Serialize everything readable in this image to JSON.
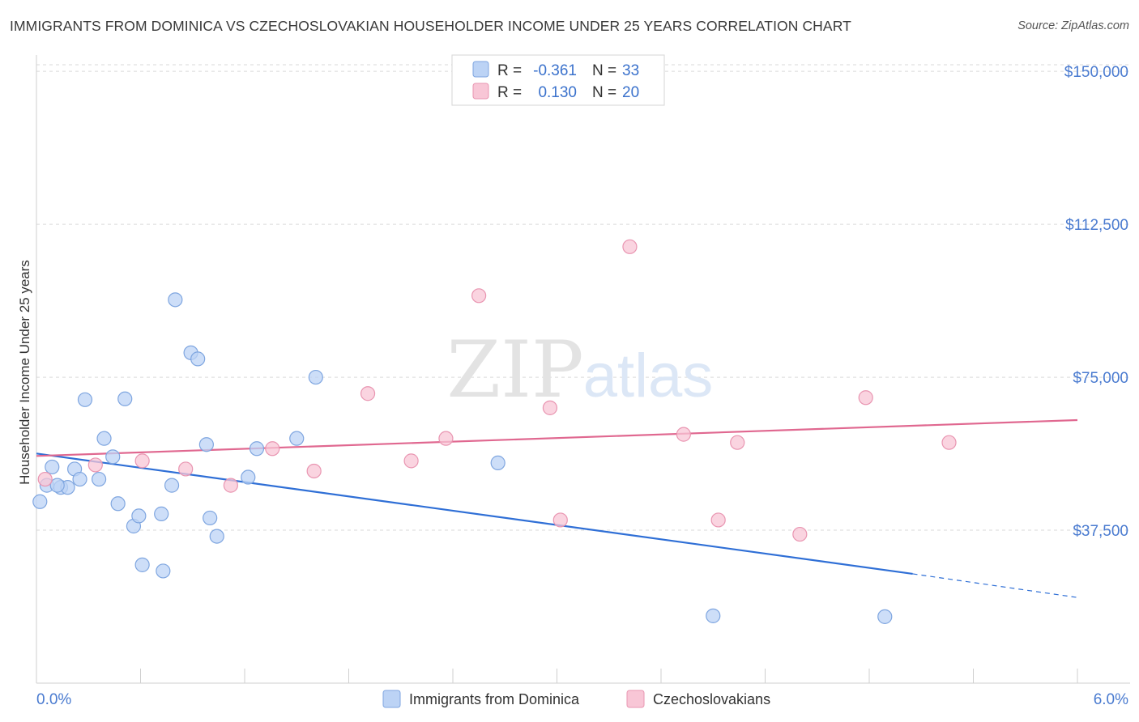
{
  "title": "IMMIGRANTS FROM DOMINICA VS CZECHOSLOVAKIAN HOUSEHOLDER INCOME UNDER 25 YEARS CORRELATION CHART",
  "source": "Source: ZipAtlas.com",
  "watermark": {
    "zip": "ZIP",
    "atlas": "atlas"
  },
  "colors": {
    "blue_fill": "#bcd3f5",
    "blue_stroke": "#7fa6e0",
    "blue_line": "#2f6fd6",
    "pink_fill": "#f8c6d6",
    "pink_stroke": "#e995b1",
    "pink_line": "#e06890",
    "grid": "#d9d9d9",
    "axis_text": "#4a7bd0"
  },
  "legend_top": {
    "rows": [
      {
        "r_label": "R =",
        "r_value": "-0.361",
        "n_label": "N =",
        "n_value": "33",
        "series": "blue"
      },
      {
        "r_label": "R =",
        "r_value": "0.130",
        "n_label": "N =",
        "n_value": "20",
        "series": "pink"
      }
    ]
  },
  "chart_data": {
    "type": "scatter",
    "title": "IMMIGRANTS FROM DOMINICA VS CZECHOSLOVAKIAN HOUSEHOLDER INCOME UNDER 25 YEARS CORRELATION CHART",
    "xlabel": "",
    "ylabel": "Householder Income Under 25 years",
    "xlim": [
      0,
      6.0
    ],
    "ylim": [
      0,
      154000
    ],
    "x_tick_labels": [
      {
        "value": 0,
        "label": "0.0%"
      },
      {
        "value": 6.0,
        "label": "6.0%"
      }
    ],
    "y_ticks": [
      {
        "value": 37500,
        "label": "$37,500"
      },
      {
        "value": 75000,
        "label": "$75,000"
      },
      {
        "value": 112500,
        "label": "$112,500"
      },
      {
        "value": 150000,
        "label": "$150,000"
      }
    ],
    "grid": true,
    "legend_placement": "bottom-center",
    "series": [
      {
        "name": "Immigrants from Dominica",
        "color": "#bcd3f5",
        "points": [
          [
            0.02,
            44500
          ],
          [
            0.06,
            48500
          ],
          [
            0.09,
            53000
          ],
          [
            0.14,
            48000
          ],
          [
            0.18,
            48000
          ],
          [
            0.22,
            52500
          ],
          [
            0.25,
            50000
          ],
          [
            0.28,
            69500
          ],
          [
            0.36,
            50000
          ],
          [
            0.39,
            60000
          ],
          [
            0.44,
            55500
          ],
          [
            0.47,
            44000
          ],
          [
            0.51,
            69700
          ],
          [
            0.56,
            38500
          ],
          [
            0.59,
            41000
          ],
          [
            0.61,
            29000
          ],
          [
            0.72,
            41500
          ],
          [
            0.73,
            27500
          ],
          [
            0.78,
            48500
          ],
          [
            0.8,
            94000
          ],
          [
            0.89,
            81000
          ],
          [
            0.93,
            79500
          ],
          [
            0.98,
            58500
          ],
          [
            1.0,
            40500
          ],
          [
            1.04,
            36000
          ],
          [
            1.22,
            50500
          ],
          [
            1.27,
            57500
          ],
          [
            1.5,
            60000
          ],
          [
            1.61,
            75000
          ],
          [
            2.66,
            54000
          ],
          [
            3.9,
            16500
          ],
          [
            4.89,
            16300
          ],
          [
            0.12,
            48500
          ]
        ],
        "trend": {
          "x0": 0.0,
          "y0": 56300,
          "x1": 5.05,
          "y1": 26800,
          "dash_to_x": 6.0,
          "dash_to_y": 21000
        }
      },
      {
        "name": "Czechoslovakians",
        "color": "#f8c6d6",
        "points": [
          [
            0.05,
            50000
          ],
          [
            0.34,
            53500
          ],
          [
            0.61,
            54500
          ],
          [
            0.86,
            52500
          ],
          [
            1.12,
            48500
          ],
          [
            1.36,
            57500
          ],
          [
            1.6,
            52000
          ],
          [
            1.91,
            71000
          ],
          [
            2.16,
            54500
          ],
          [
            2.36,
            60000
          ],
          [
            2.55,
            95000
          ],
          [
            2.96,
            67500
          ],
          [
            3.02,
            40000
          ],
          [
            3.42,
            107000
          ],
          [
            3.73,
            61000
          ],
          [
            3.93,
            40000
          ],
          [
            4.04,
            59000
          ],
          [
            4.4,
            36500
          ],
          [
            4.78,
            70000
          ],
          [
            5.26,
            59000
          ]
        ],
        "trend": {
          "x0": 0.0,
          "y0": 55700,
          "x1": 6.0,
          "y1": 64500
        }
      }
    ]
  }
}
